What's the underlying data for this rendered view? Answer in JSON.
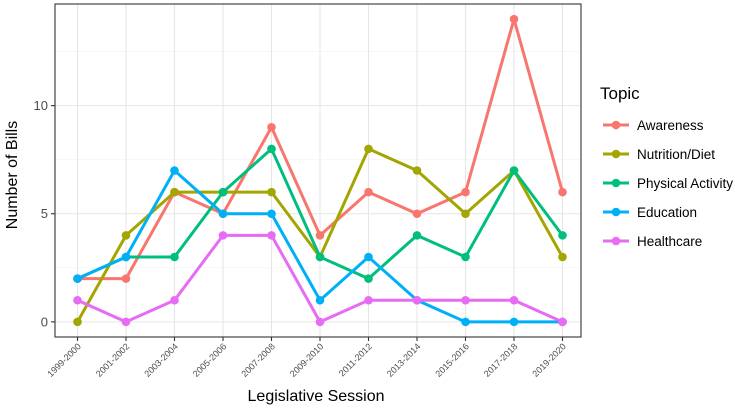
{
  "chart_data": {
    "type": "line",
    "title": "",
    "xlabel": "Legislative Session",
    "ylabel": "Number of Bills",
    "categories": [
      "1999-2000",
      "2001-2002",
      "2003-2004",
      "2005-2006",
      "2007-2008",
      "2009-2010",
      "2011-2012",
      "2013-2014",
      "2015-2016",
      "2017-2018",
      "2019-2020"
    ],
    "ylim": [
      -0.7,
      14.7
    ],
    "yticks": [
      0,
      5,
      10
    ],
    "grid": true,
    "legend": {
      "title": "Topic",
      "placement": "right"
    },
    "series": [
      {
        "name": "Awareness",
        "color": "#F8766D",
        "values": [
          2,
          2,
          6,
          5,
          9,
          4,
          6,
          5,
          6,
          14,
          6
        ]
      },
      {
        "name": "Nutrition/Diet",
        "color": "#A3A500",
        "values": [
          0,
          4,
          6,
          6,
          6,
          3,
          8,
          7,
          5,
          7,
          3
        ]
      },
      {
        "name": "Physical Activity",
        "color": "#00BF7D",
        "values": [
          2,
          3,
          3,
          6,
          8,
          3,
          2,
          4,
          3,
          7,
          4
        ]
      },
      {
        "name": "Education",
        "color": "#00B0F6",
        "values": [
          2,
          3,
          7,
          5,
          5,
          1,
          3,
          1,
          0,
          0,
          0
        ]
      },
      {
        "name": "Healthcare",
        "color": "#E76BF3",
        "values": [
          1,
          0,
          1,
          4,
          4,
          0,
          1,
          1,
          1,
          1,
          0
        ]
      }
    ]
  }
}
